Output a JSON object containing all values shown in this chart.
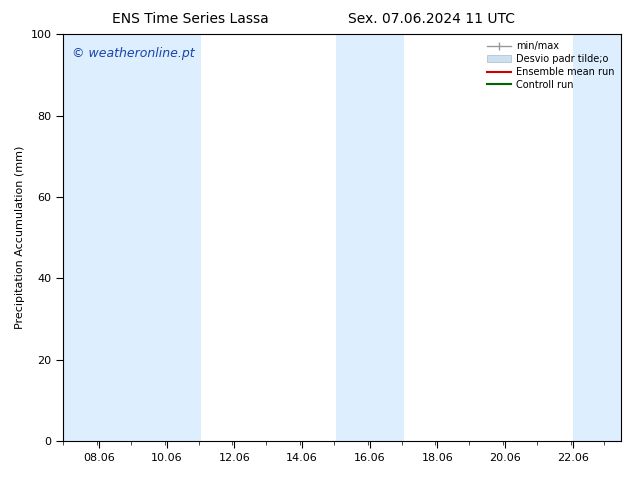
{
  "title_left": "ENS Time Series Lassa",
  "title_right": "Sex. 07.06.2024 11 UTC",
  "ylabel": "Precipitation Accumulation (mm)",
  "watermark": "© weatheronline.pt",
  "watermark_color": "#1a44aa",
  "ylim": [
    0,
    100
  ],
  "xlim_start": 7.0,
  "xlim_end": 23.5,
  "xticks": [
    8.06,
    10.06,
    12.06,
    14.06,
    16.06,
    18.06,
    20.06,
    22.06
  ],
  "xtick_labels": [
    "08.06",
    "10.06",
    "12.06",
    "14.06",
    "16.06",
    "18.06",
    "20.06",
    "22.06"
  ],
  "yticks": [
    0,
    20,
    40,
    60,
    80,
    100
  ],
  "shaded_bands": [
    {
      "x_start": 7.0,
      "x_end": 9.06,
      "color": "#ddeeff"
    },
    {
      "x_start": 9.06,
      "x_end": 11.06,
      "color": "#ddeeff"
    },
    {
      "x_start": 15.06,
      "x_end": 17.06,
      "color": "#ddeeff"
    },
    {
      "x_start": 22.06,
      "x_end": 23.5,
      "color": "#ddeeff"
    }
  ],
  "legend_label_minmax": "min/max",
  "legend_label_desvio": "Desvio padr tilde;o",
  "legend_label_ensemble": "Ensemble mean run",
  "legend_label_control": "Controll run",
  "legend_color_minmax": "#999999",
  "legend_color_desvio": "#cce0f0",
  "legend_color_ensemble": "#cc0000",
  "legend_color_control": "#006600",
  "bg_color": "#ffffff",
  "plot_bg_color": "#ffffff",
  "spine_color": "#000000",
  "grid_color": "#cccccc",
  "title_fontsize": 10,
  "label_fontsize": 8,
  "tick_fontsize": 8,
  "watermark_fontsize": 9
}
